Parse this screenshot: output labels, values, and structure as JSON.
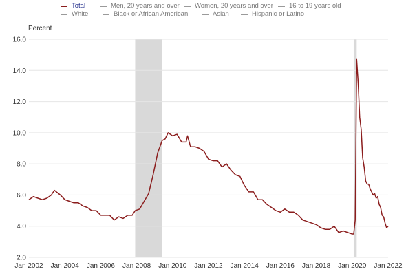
{
  "colors": {
    "total_line": "#8b1d1d",
    "recession_shade": "#d9d9d9",
    "legend_active_text": "#1f2b8a",
    "legend_inactive_text": "#777777",
    "legend_inactive_swatch": "#9a9a9a",
    "gridline": "#e6e6e6"
  },
  "legend": [
    {
      "label": "Total",
      "active": true
    },
    {
      "label": "Men, 20 years and over",
      "active": false
    },
    {
      "label": "Women, 20 years and over",
      "active": false
    },
    {
      "label": "16 to 19 years old",
      "active": false
    },
    {
      "label": "White",
      "active": false
    },
    {
      "label": "Black or African American",
      "active": false
    },
    {
      "label": "Asian",
      "active": false
    },
    {
      "label": "Hispanic or Latino",
      "active": false
    }
  ],
  "chart_data": {
    "type": "line",
    "ylabel": "Percent",
    "xlabel": "",
    "ylim": [
      2.0,
      16.0
    ],
    "xlim": [
      "Jan 2002",
      "Jan 2022"
    ],
    "y_ticks": [
      "2.0",
      "4.0",
      "6.0",
      "8.0",
      "10.0",
      "12.0",
      "14.0",
      "16.0"
    ],
    "x_ticks": [
      "Jan 2002",
      "Jan 2004",
      "Jan 2006",
      "Jan 2008",
      "Jan 2010",
      "Jan 2012",
      "Jan 2014",
      "Jan 2016",
      "Jan 2018",
      "Jan 2020",
      "Jan 2022"
    ],
    "grid": "horizontal",
    "legend_position": "top",
    "recessions": [
      {
        "start": "Dec 2007",
        "end": "Jun 2009"
      },
      {
        "start": "Feb 2020",
        "end": "Apr 2020"
      }
    ],
    "series": [
      {
        "name": "Total",
        "color": "#8b1d1d",
        "points": [
          [
            "Jan 2002",
            5.7
          ],
          [
            "Apr 2002",
            5.9
          ],
          [
            "Jul 2002",
            5.8
          ],
          [
            "Oct 2002",
            5.7
          ],
          [
            "Jan 2003",
            5.8
          ],
          [
            "Apr 2003",
            6.0
          ],
          [
            "Jun 2003",
            6.3
          ],
          [
            "Oct 2003",
            6.0
          ],
          [
            "Jan 2004",
            5.7
          ],
          [
            "Apr 2004",
            5.6
          ],
          [
            "Jul 2004",
            5.5
          ],
          [
            "Oct 2004",
            5.5
          ],
          [
            "Jan 2005",
            5.3
          ],
          [
            "Apr 2005",
            5.2
          ],
          [
            "Jul 2005",
            5.0
          ],
          [
            "Oct 2005",
            5.0
          ],
          [
            "Jan 2006",
            4.7
          ],
          [
            "Apr 2006",
            4.7
          ],
          [
            "Jul 2006",
            4.7
          ],
          [
            "Oct 2006",
            4.4
          ],
          [
            "Jan 2007",
            4.6
          ],
          [
            "Apr 2007",
            4.5
          ],
          [
            "Jul 2007",
            4.7
          ],
          [
            "Oct 2007",
            4.7
          ],
          [
            "Dec 2007",
            5.0
          ],
          [
            "Mar 2008",
            5.1
          ],
          [
            "Jun 2008",
            5.6
          ],
          [
            "Sep 2008",
            6.1
          ],
          [
            "Dec 2008",
            7.3
          ],
          [
            "Mar 2009",
            8.7
          ],
          [
            "Jun 2009",
            9.5
          ],
          [
            "Aug 2009",
            9.6
          ],
          [
            "Oct 2009",
            10.0
          ],
          [
            "Jan 2010",
            9.8
          ],
          [
            "Apr 2010",
            9.9
          ],
          [
            "Jul 2010",
            9.4
          ],
          [
            "Oct 2010",
            9.4
          ],
          [
            "Nov 2010",
            9.8
          ],
          [
            "Jan 2011",
            9.1
          ],
          [
            "Apr 2011",
            9.1
          ],
          [
            "Jul 2011",
            9.0
          ],
          [
            "Oct 2011",
            8.8
          ],
          [
            "Jan 2012",
            8.3
          ],
          [
            "Apr 2012",
            8.2
          ],
          [
            "Jul 2012",
            8.2
          ],
          [
            "Oct 2012",
            7.8
          ],
          [
            "Jan 2013",
            8.0
          ],
          [
            "Apr 2013",
            7.6
          ],
          [
            "Jul 2013",
            7.3
          ],
          [
            "Oct 2013",
            7.2
          ],
          [
            "Jan 2014",
            6.6
          ],
          [
            "Apr 2014",
            6.2
          ],
          [
            "Jul 2014",
            6.2
          ],
          [
            "Oct 2014",
            5.7
          ],
          [
            "Jan 2015",
            5.7
          ],
          [
            "Apr 2015",
            5.4
          ],
          [
            "Jul 2015",
            5.2
          ],
          [
            "Oct 2015",
            5.0
          ],
          [
            "Jan 2016",
            4.9
          ],
          [
            "Apr 2016",
            5.1
          ],
          [
            "Jul 2016",
            4.9
          ],
          [
            "Oct 2016",
            4.9
          ],
          [
            "Jan 2017",
            4.7
          ],
          [
            "Apr 2017",
            4.4
          ],
          [
            "Jul 2017",
            4.3
          ],
          [
            "Oct 2017",
            4.2
          ],
          [
            "Jan 2018",
            4.1
          ],
          [
            "Apr 2018",
            3.9
          ],
          [
            "Jul 2018",
            3.8
          ],
          [
            "Oct 2018",
            3.8
          ],
          [
            "Jan 2019",
            4.0
          ],
          [
            "Apr 2019",
            3.6
          ],
          [
            "Jul 2019",
            3.7
          ],
          [
            "Oct 2019",
            3.6
          ],
          [
            "Jan 2020",
            3.5
          ],
          [
            "Feb 2020",
            3.5
          ],
          [
            "Mar 2020",
            4.4
          ],
          [
            "Apr 2020",
            14.7
          ],
          [
            "May 2020",
            13.2
          ],
          [
            "Jun 2020",
            11.0
          ],
          [
            "Jul 2020",
            10.2
          ],
          [
            "Aug 2020",
            8.4
          ],
          [
            "Sep 2020",
            7.8
          ],
          [
            "Oct 2020",
            6.9
          ],
          [
            "Nov 2020",
            6.7
          ],
          [
            "Dec 2020",
            6.7
          ],
          [
            "Jan 2021",
            6.4
          ],
          [
            "Feb 2021",
            6.2
          ],
          [
            "Mar 2021",
            6.0
          ],
          [
            "Apr 2021",
            6.1
          ],
          [
            "May 2021",
            5.8
          ],
          [
            "Jun 2021",
            5.9
          ],
          [
            "Jul 2021",
            5.4
          ],
          [
            "Aug 2021",
            5.2
          ],
          [
            "Sep 2021",
            4.7
          ],
          [
            "Oct 2021",
            4.6
          ],
          [
            "Nov 2021",
            4.2
          ],
          [
            "Dec 2021",
            3.9
          ],
          [
            "Jan 2022",
            4.0
          ]
        ]
      }
    ]
  }
}
